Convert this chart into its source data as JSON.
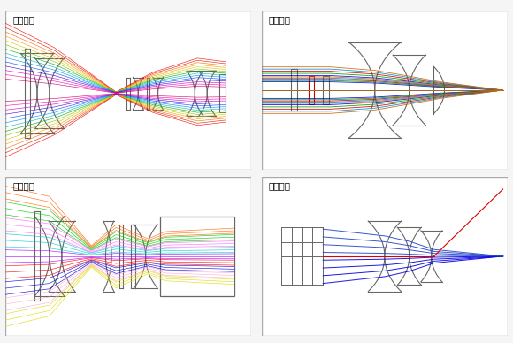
{
  "panels": [
    {
      "label": "相机镜头"
    },
    {
      "label": "显微物镜"
    },
    {
      "label": "投影物镜"
    },
    {
      "label": "激光系统"
    }
  ],
  "bg_color": "#f5f5f5",
  "lens_color": "#666666",
  "ray_colors_camera": [
    "#ff0000",
    "#cc2200",
    "#ff6600",
    "#ff9900",
    "#cccc00",
    "#88bb00",
    "#00aa00",
    "#00bbaa",
    "#0088ff",
    "#0044ff",
    "#4400cc",
    "#cc00cc",
    "#ff00aa",
    "#cc0066"
  ],
  "ray_colors_micro": [
    "#0000ee",
    "#009900",
    "#cc0000",
    "#0088cc",
    "#cc6600"
  ],
  "ray_colors_proj": [
    "#dddd00",
    "#ffaacc",
    "#0000dd",
    "#ff0000",
    "#aa00ff",
    "#00cccc",
    "#ff66ff",
    "#00cc00",
    "#ff6600"
  ],
  "ray_colors_laser": [
    "#0000cc",
    "#0000ff",
    "#2222ff",
    "#4444ff",
    "#6666ff",
    "#8888ff"
  ]
}
